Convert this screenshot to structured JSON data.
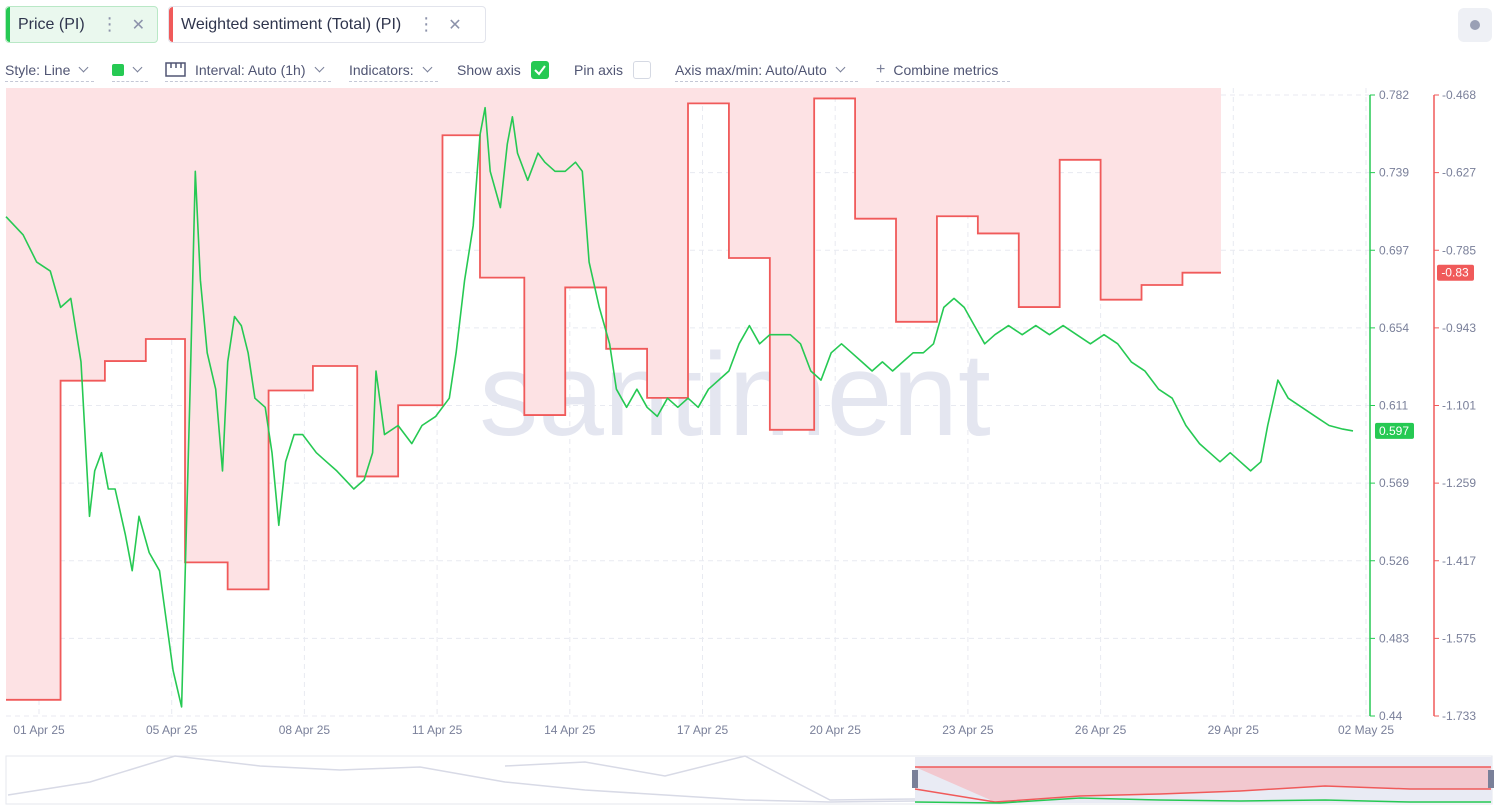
{
  "tabs": [
    {
      "label": "Price (PI)",
      "color": "#26c953"
    },
    {
      "label": "Weighted sentiment (Total) (PI)",
      "color": "#f05a5a"
    }
  ],
  "toolbar": {
    "style": "Style: Line",
    "interval": "Interval: Auto (1h)",
    "indicators": "Indicators:",
    "show_axis": "Show axis",
    "pin_axis": "Pin axis",
    "axis_minmax": "Axis max/min: Auto/Auto",
    "combine": "Combine metrics"
  },
  "watermark": "santiment",
  "chart_data": {
    "type": "line",
    "x_ticks": [
      "01 Apr 25",
      "05 Apr 25",
      "08 Apr 25",
      "11 Apr 25",
      "14 Apr 25",
      "17 Apr 25",
      "20 Apr 25",
      "23 Apr 25",
      "26 Apr 25",
      "29 Apr 25",
      "02 May 25"
    ],
    "y_left_ticks": [
      "0.782",
      "0.739",
      "0.697",
      "0.654",
      "0.611",
      "0.569",
      "0.526",
      "0.483",
      "0.44"
    ],
    "y_right_ticks": [
      "-0.468",
      "-0.627",
      "-0.785",
      "-0.943",
      "-1.101",
      "-1.259",
      "-1.417",
      "-1.575",
      "-1.733"
    ],
    "ylim_price": [
      0.44,
      0.782
    ],
    "ylim_sentiment": [
      -1.733,
      -0.468
    ],
    "last_price_label": "0.597",
    "last_sentiment_label": "-0.83",
    "series": [
      {
        "name": "Price (PI)",
        "color": "#26c953",
        "points": [
          [
            0.0,
            0.715
          ],
          [
            0.5,
            0.705
          ],
          [
            0.9,
            0.69
          ],
          [
            1.3,
            0.685
          ],
          [
            1.6,
            0.665
          ],
          [
            1.9,
            0.67
          ],
          [
            2.2,
            0.635
          ],
          [
            2.45,
            0.55
          ],
          [
            2.6,
            0.575
          ],
          [
            2.8,
            0.585
          ],
          [
            3.0,
            0.565
          ],
          [
            3.2,
            0.565
          ],
          [
            3.5,
            0.54
          ],
          [
            3.7,
            0.52
          ],
          [
            3.9,
            0.55
          ],
          [
            4.2,
            0.53
          ],
          [
            4.5,
            0.52
          ],
          [
            4.9,
            0.465
          ],
          [
            5.15,
            0.445
          ],
          [
            5.4,
            0.62
          ],
          [
            5.55,
            0.74
          ],
          [
            5.7,
            0.68
          ],
          [
            5.9,
            0.64
          ],
          [
            6.15,
            0.62
          ],
          [
            6.35,
            0.575
          ],
          [
            6.5,
            0.635
          ],
          [
            6.7,
            0.66
          ],
          [
            6.9,
            0.655
          ],
          [
            7.1,
            0.64
          ],
          [
            7.3,
            0.615
          ],
          [
            7.6,
            0.61
          ],
          [
            7.8,
            0.585
          ],
          [
            8.0,
            0.545
          ],
          [
            8.2,
            0.58
          ],
          [
            8.45,
            0.595
          ],
          [
            8.7,
            0.595
          ],
          [
            9.1,
            0.585
          ],
          [
            9.4,
            0.58
          ],
          [
            9.7,
            0.575
          ],
          [
            9.95,
            0.57
          ],
          [
            10.2,
            0.565
          ],
          [
            10.5,
            0.57
          ],
          [
            10.75,
            0.585
          ],
          [
            10.85,
            0.63
          ],
          [
            11.1,
            0.595
          ],
          [
            11.5,
            0.6
          ],
          [
            11.9,
            0.59
          ],
          [
            12.2,
            0.6
          ],
          [
            12.6,
            0.605
          ],
          [
            13.0,
            0.615
          ],
          [
            13.2,
            0.64
          ],
          [
            13.45,
            0.68
          ],
          [
            13.7,
            0.71
          ],
          [
            13.9,
            0.76
          ],
          [
            14.05,
            0.775
          ],
          [
            14.2,
            0.74
          ],
          [
            14.5,
            0.72
          ],
          [
            14.7,
            0.755
          ],
          [
            14.85,
            0.77
          ],
          [
            15.0,
            0.75
          ],
          [
            15.3,
            0.735
          ],
          [
            15.6,
            0.75
          ],
          [
            15.8,
            0.745
          ],
          [
            16.1,
            0.74
          ],
          [
            16.4,
            0.74
          ],
          [
            16.7,
            0.745
          ],
          [
            16.9,
            0.74
          ],
          [
            17.1,
            0.69
          ],
          [
            17.4,
            0.665
          ],
          [
            17.7,
            0.645
          ],
          [
            17.9,
            0.62
          ],
          [
            18.2,
            0.61
          ],
          [
            18.5,
            0.62
          ],
          [
            18.8,
            0.61
          ],
          [
            19.1,
            0.605
          ],
          [
            19.4,
            0.615
          ],
          [
            19.7,
            0.61
          ],
          [
            20.0,
            0.615
          ],
          [
            20.3,
            0.61
          ],
          [
            20.6,
            0.62
          ],
          [
            20.9,
            0.625
          ],
          [
            21.2,
            0.63
          ],
          [
            21.5,
            0.645
          ],
          [
            21.8,
            0.655
          ],
          [
            22.1,
            0.645
          ],
          [
            22.4,
            0.65
          ],
          [
            22.7,
            0.65
          ],
          [
            23.0,
            0.65
          ],
          [
            23.3,
            0.645
          ],
          [
            23.6,
            0.63
          ],
          [
            23.9,
            0.625
          ],
          [
            24.2,
            0.64
          ],
          [
            24.5,
            0.645
          ],
          [
            24.8,
            0.64
          ],
          [
            25.1,
            0.635
          ],
          [
            25.4,
            0.63
          ],
          [
            25.7,
            0.635
          ],
          [
            26.0,
            0.63
          ],
          [
            26.3,
            0.635
          ],
          [
            26.6,
            0.64
          ],
          [
            26.9,
            0.64
          ],
          [
            27.2,
            0.645
          ],
          [
            27.5,
            0.665
          ],
          [
            27.8,
            0.67
          ],
          [
            28.1,
            0.665
          ],
          [
            28.4,
            0.655
          ],
          [
            28.7,
            0.645
          ],
          [
            29.0,
            0.65
          ],
          [
            29.4,
            0.655
          ],
          [
            29.8,
            0.65
          ],
          [
            30.2,
            0.655
          ],
          [
            30.6,
            0.65
          ],
          [
            31.0,
            0.655
          ],
          [
            31.4,
            0.65
          ],
          [
            31.8,
            0.645
          ],
          [
            32.2,
            0.65
          ],
          [
            32.6,
            0.645
          ],
          [
            33.0,
            0.635
          ],
          [
            33.4,
            0.63
          ],
          [
            33.8,
            0.62
          ],
          [
            34.2,
            0.615
          ],
          [
            34.6,
            0.6
          ],
          [
            35.0,
            0.59
          ],
          [
            35.3,
            0.585
          ],
          [
            35.6,
            0.58
          ],
          [
            35.9,
            0.585
          ],
          [
            36.2,
            0.58
          ],
          [
            36.5,
            0.575
          ],
          [
            36.8,
            0.58
          ],
          [
            37.0,
            0.6
          ],
          [
            37.3,
            0.625
          ],
          [
            37.6,
            0.615
          ],
          [
            38.0,
            0.61
          ],
          [
            38.4,
            0.605
          ],
          [
            38.8,
            0.6
          ],
          [
            39.2,
            0.598
          ],
          [
            39.5,
            0.597
          ]
        ]
      },
      {
        "name": "Weighted sentiment (Total) (PI)",
        "color": "#f05a5a",
        "steps": [
          [
            0.0,
            -1.7
          ],
          [
            1.6,
            -1.05
          ],
          [
            2.9,
            -1.01
          ],
          [
            4.1,
            -0.965
          ],
          [
            5.25,
            -1.42
          ],
          [
            6.5,
            -1.475
          ],
          [
            7.7,
            -1.07
          ],
          [
            9.0,
            -1.02
          ],
          [
            10.3,
            -1.245
          ],
          [
            11.5,
            -1.1
          ],
          [
            12.8,
            -0.55
          ],
          [
            13.9,
            -0.84
          ],
          [
            15.2,
            -1.12
          ],
          [
            16.4,
            -0.86
          ],
          [
            17.6,
            -0.985
          ],
          [
            18.8,
            -1.085
          ],
          [
            20.0,
            -0.485
          ],
          [
            21.2,
            -0.8
          ],
          [
            22.4,
            -1.15
          ],
          [
            23.7,
            -0.475
          ],
          [
            24.9,
            -0.72
          ],
          [
            26.1,
            -0.93
          ],
          [
            27.3,
            -0.715
          ],
          [
            28.5,
            -0.75
          ],
          [
            29.7,
            -0.9
          ],
          [
            30.9,
            -0.6
          ],
          [
            32.1,
            -0.885
          ],
          [
            33.3,
            -0.855
          ],
          [
            34.5,
            -0.83
          ],
          [
            35.6,
            -0.83
          ]
        ]
      }
    ],
    "grid": true
  }
}
